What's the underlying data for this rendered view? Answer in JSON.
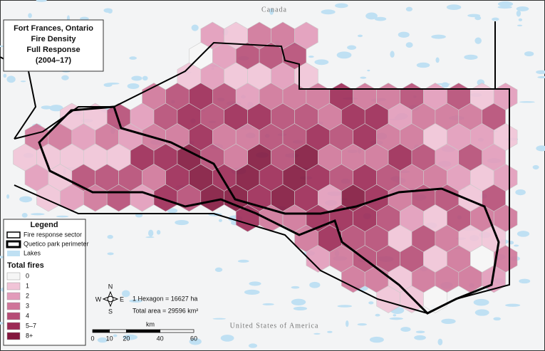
{
  "title": [
    "Fort Frances, Ontario",
    "Fire Density",
    "Full Response",
    "(2004–17)"
  ],
  "labels": {
    "north": "Canada",
    "south": "United States of America"
  },
  "legend": {
    "title": "Legend",
    "lines": [
      "Fire response sector",
      "Quetico park perimeter",
      "Lakes"
    ],
    "fires_title": "Total fires",
    "items": [
      {
        "label": "0",
        "color": "#f6f6f6"
      },
      {
        "label": "1",
        "color": "#f1c4d7"
      },
      {
        "label": "2",
        "color": "#e29bba"
      },
      {
        "label": "3",
        "color": "#cf7599"
      },
      {
        "label": "4",
        "color": "#b64c75"
      },
      {
        "label": "5–7",
        "color": "#9c2955"
      },
      {
        "label": "8+",
        "color": "#83173e"
      }
    ]
  },
  "compass": {
    "n": "N",
    "s": "S",
    "e": "E",
    "w": "W"
  },
  "notes": [
    "1 Hexagon = 16627 ha",
    "Total area = 29596 km²"
  ],
  "scale": {
    "label": "km",
    "ticks": [
      0,
      10,
      20,
      40,
      60
    ]
  }
}
